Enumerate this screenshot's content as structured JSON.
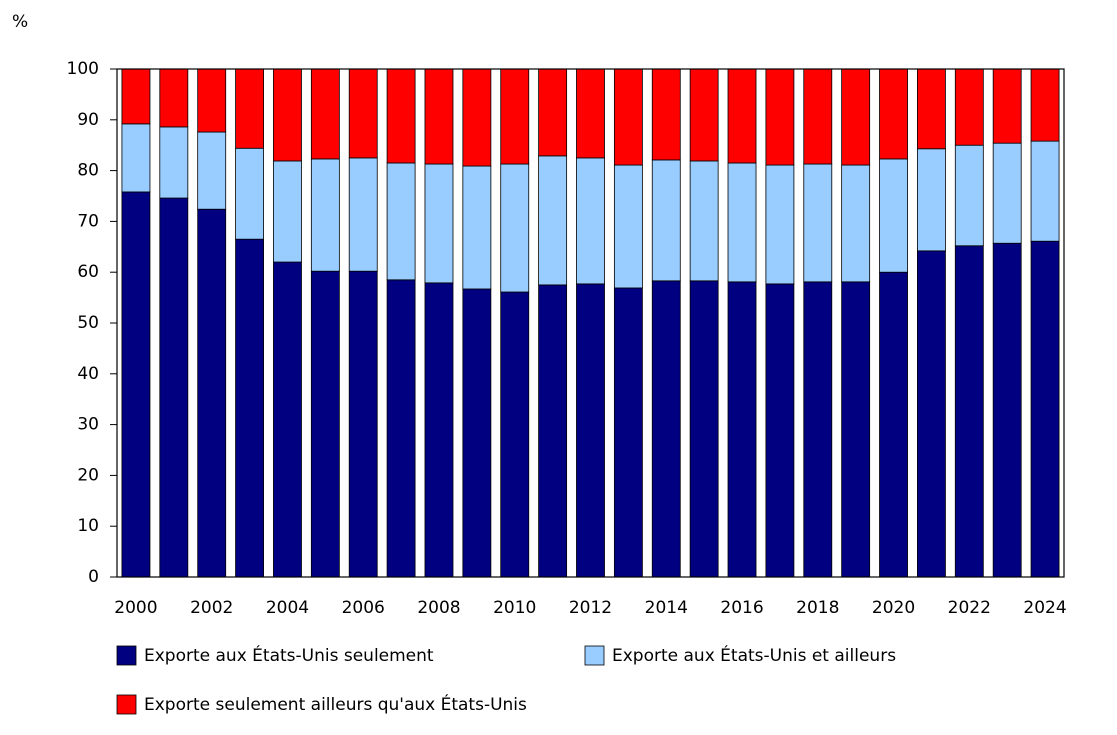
{
  "chart_data": {
    "type": "stacked_bar",
    "y_label": "%",
    "categories": [
      "2000",
      null,
      "2002",
      null,
      "2004",
      null,
      "2006",
      null,
      "2008",
      null,
      "2010",
      null,
      "2012",
      null,
      "2014",
      null,
      "2016",
      null,
      "2018",
      null,
      "2020",
      null,
      "2022",
      null,
      "2024"
    ],
    "series": [
      {
        "name": "Exporte aux États-Unis seulement",
        "color": "#000080",
        "values": [
          75.8,
          74.6,
          72.4,
          66.5,
          62.0,
          60.2,
          60.2,
          58.5,
          57.9,
          56.7,
          56.1,
          57.5,
          57.7,
          56.9,
          58.3,
          58.3,
          58.1,
          57.7,
          58.1,
          58.1,
          60.0,
          64.2,
          65.2,
          65.7,
          66.1
        ]
      },
      {
        "name": "Exporte aux États-Unis et ailleurs",
        "color": "#99ccff",
        "values": [
          13.4,
          14.0,
          15.2,
          17.9,
          19.9,
          22.1,
          22.3,
          23.0,
          23.4,
          24.2,
          25.2,
          25.4,
          24.8,
          24.2,
          23.8,
          23.6,
          23.4,
          23.4,
          23.2,
          23.0,
          22.3,
          20.1,
          19.8,
          19.7,
          19.7
        ]
      },
      {
        "name": "Exporte seulement ailleurs qu'aux États-Unis",
        "color": "#ff0000",
        "values": [
          10.8,
          11.4,
          12.4,
          15.6,
          18.1,
          17.7,
          17.5,
          18.5,
          18.7,
          19.1,
          18.7,
          17.1,
          17.5,
          18.9,
          17.9,
          18.1,
          18.5,
          18.9,
          18.7,
          18.9,
          17.7,
          15.7,
          15.0,
          14.6,
          14.2
        ]
      }
    ],
    "ylim": [
      0,
      100
    ],
    "yticks": [
      0,
      10,
      20,
      30,
      40,
      50,
      60,
      70,
      80,
      90,
      100
    ],
    "grid": false
  }
}
